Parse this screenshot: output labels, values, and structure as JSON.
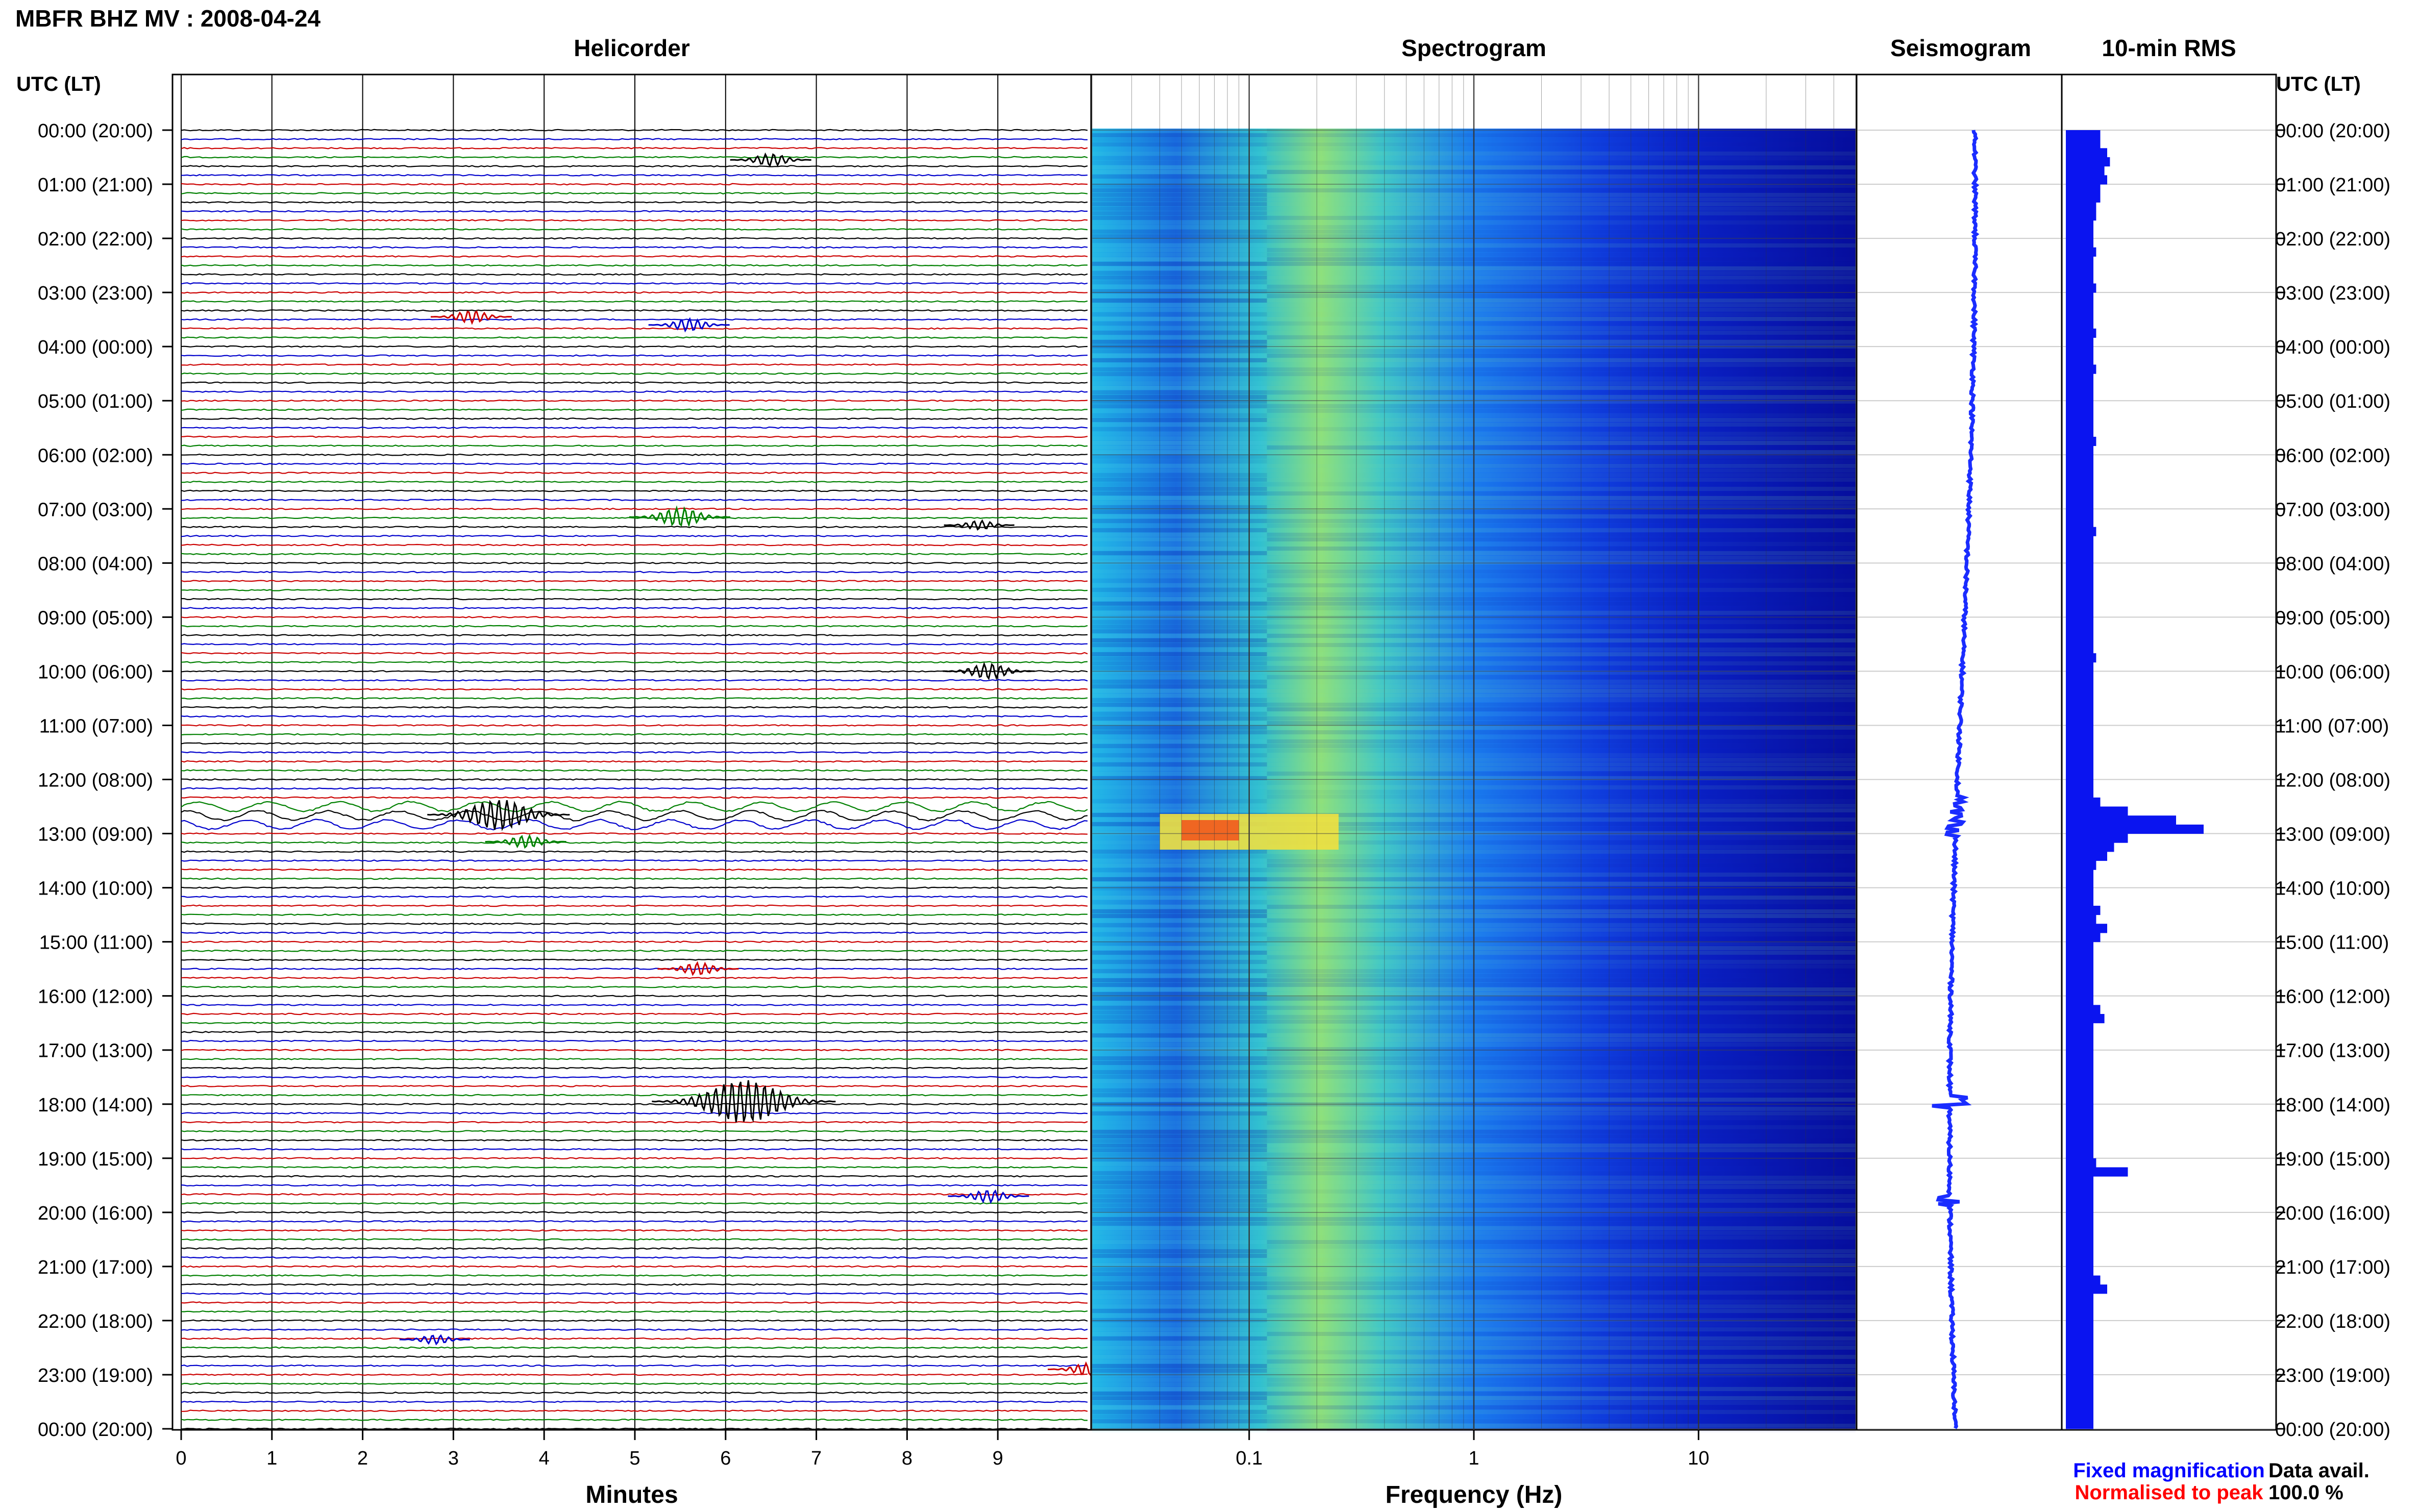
{
  "header": {
    "title": "MBFR BHZ MV : 2008-04-24"
  },
  "panels": {
    "helicorder": "Helicorder",
    "spectrogram": "Spectrogram",
    "seismogram": "Seismogram",
    "rms": "10-min RMS"
  },
  "axis": {
    "time_label": "UTC (LT)",
    "time_ticks": [
      "00:00 (20:00)",
      "01:00 (21:00)",
      "02:00 (22:00)",
      "03:00 (23:00)",
      "04:00 (00:00)",
      "05:00 (01:00)",
      "06:00 (02:00)",
      "07:00 (03:00)",
      "08:00 (04:00)",
      "09:00 (05:00)",
      "10:00 (06:00)",
      "11:00 (07:00)",
      "12:00 (08:00)",
      "13:00 (09:00)",
      "14:00 (10:00)",
      "15:00 (11:00)",
      "16:00 (12:00)",
      "17:00 (13:00)",
      "18:00 (14:00)",
      "19:00 (15:00)",
      "20:00 (16:00)",
      "21:00 (17:00)",
      "22:00 (18:00)",
      "23:00 (19:00)",
      "00:00 (20:00)"
    ],
    "minutes_label": "Minutes",
    "minutes_ticks": [
      "0",
      "1",
      "2",
      "3",
      "4",
      "5",
      "6",
      "7",
      "8",
      "9"
    ],
    "frequency_label": "Frequency (Hz)",
    "frequency_ticks": [
      "0.1",
      "1",
      "10"
    ]
  },
  "legend": {
    "fixed": "Fixed magnification",
    "normalised": "Normalised to peak",
    "fixed_color": "#0000ff",
    "normalised_color": "#ff0000"
  },
  "availability": {
    "label": "Data avail.",
    "value": "100.0 %"
  },
  "chart_data": {
    "type": "heatmap",
    "trace_colors": [
      "#000000",
      "#0000cc",
      "#cc0000",
      "#008000"
    ],
    "helicorder_events": [
      {
        "hour": 0.55,
        "minute": 6.5,
        "amp": 2,
        "color": "black"
      },
      {
        "hour": 3.45,
        "minute": 3.2,
        "amp": 2,
        "color": "red"
      },
      {
        "hour": 3.6,
        "minute": 5.6,
        "amp": 2,
        "color": "blue"
      },
      {
        "hour": 7.15,
        "minute": 5.5,
        "amp": 3,
        "color": "green"
      },
      {
        "hour": 7.3,
        "minute": 8.8,
        "amp": 1.5,
        "color": "black"
      },
      {
        "hour": 10.0,
        "minute": 8.9,
        "amp": 2.5,
        "color": "black"
      },
      {
        "hour": 12.65,
        "minute": 3.5,
        "amp": 5,
        "color": "mixed"
      },
      {
        "hour": 13.15,
        "minute": 3.8,
        "amp": 2,
        "color": "green"
      },
      {
        "hour": 15.5,
        "minute": 5.7,
        "amp": 2,
        "color": "red"
      },
      {
        "hour": 17.95,
        "minute": 6.2,
        "amp": 7,
        "color": "black"
      },
      {
        "hour": 19.7,
        "minute": 8.9,
        "amp": 2,
        "color": "blue"
      },
      {
        "hour": 22.35,
        "minute": 2.8,
        "amp": 1.5,
        "color": "blue"
      },
      {
        "hour": 22.9,
        "minute": 10.0,
        "amp": 2,
        "color": "red"
      }
    ],
    "rms_10min": [
      0.25,
      0.25,
      0.3,
      0.32,
      0.28,
      0.3,
      0.25,
      0.25,
      0.22,
      0.22,
      0.2,
      0.2,
      0.2,
      0.22,
      0.2,
      0.2,
      0.2,
      0.22,
      0.2,
      0.2,
      0.2,
      0.2,
      0.22,
      0.2,
      0.2,
      0.2,
      0.22,
      0.2,
      0.2,
      0.2,
      0.2,
      0.2,
      0.2,
      0.2,
      0.22,
      0.2,
      0.2,
      0.2,
      0.2,
      0.2,
      0.2,
      0.2,
      0.2,
      0.2,
      0.22,
      0.2,
      0.2,
      0.2,
      0.2,
      0.2,
      0.2,
      0.2,
      0.2,
      0.2,
      0.2,
      0.2,
      0.2,
      0.2,
      0.22,
      0.2,
      0.2,
      0.2,
      0.2,
      0.2,
      0.2,
      0.2,
      0.2,
      0.2,
      0.2,
      0.2,
      0.2,
      0.2,
      0.2,
      0.2,
      0.25,
      0.45,
      0.8,
      1.0,
      0.45,
      0.35,
      0.3,
      0.22,
      0.2,
      0.2,
      0.2,
      0.2,
      0.25,
      0.22,
      0.3,
      0.25,
      0.2,
      0.2,
      0.2,
      0.2,
      0.2,
      0.2,
      0.2,
      0.25,
      0.28,
      0.2,
      0.2,
      0.2,
      0.2,
      0.2,
      0.2,
      0.2,
      0.2,
      0.2,
      0.2,
      0.2,
      0.2,
      0.2,
      0.2,
      0.2,
      0.22,
      0.45,
      0.2,
      0.2,
      0.2,
      0.2,
      0.2,
      0.2,
      0.2,
      0.2,
      0.2,
      0.2,
      0.2,
      0.25,
      0.3,
      0.2,
      0.2,
      0.2,
      0.2,
      0.2,
      0.2,
      0.2,
      0.2,
      0.2,
      0.2,
      0.2,
      0.2,
      0.2,
      0.2,
      0.2
    ],
    "spectrogram_range_hz": [
      0.02,
      50
    ],
    "peak_event_hour": 12.75,
    "peak_event_band_hz": [
      0.04,
      0.25
    ]
  }
}
